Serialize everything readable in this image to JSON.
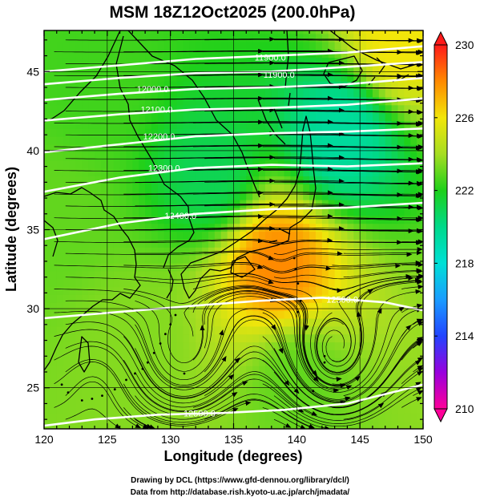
{
  "chart_data": {
    "type": "heatmap",
    "title": "MSM 18Z12Oct2025 (200.0hPa)",
    "xlabel": "Longitude (degrees)",
    "ylabel": "Latitude  (degrees)",
    "xlim": [
      120,
      150
    ],
    "ylim": [
      22.4,
      47.6
    ],
    "x_ticks": [
      120,
      125,
      130,
      135,
      140,
      145,
      150
    ],
    "y_ticks": [
      25,
      30,
      35,
      40,
      45
    ],
    "colorbar": {
      "min": 210,
      "max": 230,
      "ticks": [
        210,
        214,
        218,
        222,
        226,
        230
      ],
      "stops": [
        {
          "v": 210,
          "c": "#ff0099"
        },
        {
          "v": 212,
          "c": "#9900dd"
        },
        {
          "v": 214,
          "c": "#2244ff"
        },
        {
          "v": 216,
          "c": "#1a9cff"
        },
        {
          "v": 218,
          "c": "#00e0d6"
        },
        {
          "v": 220,
          "c": "#00d98a"
        },
        {
          "v": 222,
          "c": "#1ed01a"
        },
        {
          "v": 224,
          "c": "#a6dd22"
        },
        {
          "v": 226,
          "c": "#f2e60a"
        },
        {
          "v": 228,
          "c": "#ff8a00"
        },
        {
          "v": 230,
          "c": "#ff1a1a"
        }
      ]
    },
    "temperature_features": [
      {
        "lon": 138.5,
        "lat": 32.8,
        "value": 228,
        "note": "warm spot"
      },
      {
        "lon": 143.5,
        "lat": 41.0,
        "value": 219.5
      },
      {
        "lon": 133.0,
        "lat": 38.5,
        "value": 221
      },
      {
        "lon": 124.0,
        "lat": 44.0,
        "value": 222.5
      },
      {
        "lon": 127.0,
        "lat": 28.0,
        "value": 223.5
      },
      {
        "lon": 140.0,
        "lat": 25.5,
        "value": 223
      },
      {
        "lon": 148.0,
        "lat": 47.0,
        "value": 226
      },
      {
        "lon": 121.0,
        "lat": 36.0,
        "value": 223
      }
    ],
    "geopotential_contours": [
      {
        "label": "11900.0",
        "value": 11900,
        "label_lon": 137.9,
        "label_lat": 45.9,
        "points": [
          [
            120,
            45.0
          ],
          [
            126,
            45.4
          ],
          [
            132,
            45.8
          ],
          [
            138,
            46.0
          ],
          [
            144,
            46.2
          ],
          [
            150,
            46.6
          ]
        ]
      },
      {
        "label": "11900.0",
        "value": 11900,
        "label_lon": 138.6,
        "label_lat": 44.8,
        "points": [
          [
            120,
            44.2
          ],
          [
            126,
            44.6
          ],
          [
            132,
            44.9
          ],
          [
            138,
            45.0
          ],
          [
            144,
            45.3
          ],
          [
            150,
            45.6
          ]
        ]
      },
      {
        "label": "12000.0",
        "value": 12000,
        "label_lon": 128.6,
        "label_lat": 43.9,
        "points": [
          [
            120,
            43.2
          ],
          [
            126,
            43.6
          ],
          [
            132,
            43.9
          ],
          [
            138,
            44.0
          ],
          [
            144,
            44.2
          ],
          [
            150,
            44.6
          ]
        ]
      },
      {
        "label": "12100.0",
        "value": 12100,
        "label_lon": 128.9,
        "label_lat": 42.6,
        "points": [
          [
            120,
            41.9
          ],
          [
            126,
            42.3
          ],
          [
            132,
            42.6
          ],
          [
            138,
            42.7
          ],
          [
            144,
            42.9
          ],
          [
            150,
            43.3
          ]
        ]
      },
      {
        "label": "12200.0",
        "value": 12200,
        "label_lon": 129.1,
        "label_lat": 40.9,
        "points": [
          [
            120,
            39.9
          ],
          [
            126,
            40.4
          ],
          [
            132,
            40.9
          ],
          [
            138,
            41.1
          ],
          [
            144,
            41.2
          ],
          [
            150,
            41.4
          ]
        ]
      },
      {
        "label": "12300.0",
        "value": 12300,
        "label_lon": 129.5,
        "label_lat": 38.9,
        "points": [
          [
            120,
            37.4
          ],
          [
            126,
            38.3
          ],
          [
            132,
            38.9
          ],
          [
            138,
            39.1
          ],
          [
            144,
            39.0
          ],
          [
            150,
            39.2
          ]
        ]
      },
      {
        "label": "12400.0",
        "value": 12400,
        "label_lon": 130.8,
        "label_lat": 35.9,
        "points": [
          [
            120,
            34.4
          ],
          [
            126,
            35.4
          ],
          [
            132,
            36.0
          ],
          [
            138,
            36.3
          ],
          [
            144,
            36.4
          ],
          [
            150,
            36.7
          ]
        ]
      },
      {
        "label": "12500.0",
        "value": 12500,
        "label_lon": 143.6,
        "label_lat": 30.6,
        "points": [
          [
            120,
            29.4
          ],
          [
            126,
            29.8
          ],
          [
            132,
            30.2
          ],
          [
            137,
            30.5
          ],
          [
            142,
            30.7
          ],
          [
            147,
            30.4
          ],
          [
            150,
            29.9
          ]
        ]
      },
      {
        "label": "12500.0",
        "value": 12500,
        "label_lon": 132.3,
        "label_lat": 23.4,
        "points": [
          [
            120,
            22.6
          ],
          [
            124,
            23.0
          ],
          [
            129,
            23.3
          ],
          [
            134,
            23.4
          ],
          [
            139,
            23.6
          ],
          [
            144,
            24.0
          ],
          [
            148,
            24.8
          ],
          [
            150,
            25.2
          ]
        ]
      }
    ]
  },
  "credits": {
    "line1": "Drawing by DCL (https://www.gfd-dennou.org/library/dcl/)",
    "line2": "Data from http://database.rish.kyoto-u.ac.jp/arch/jmadata/"
  }
}
